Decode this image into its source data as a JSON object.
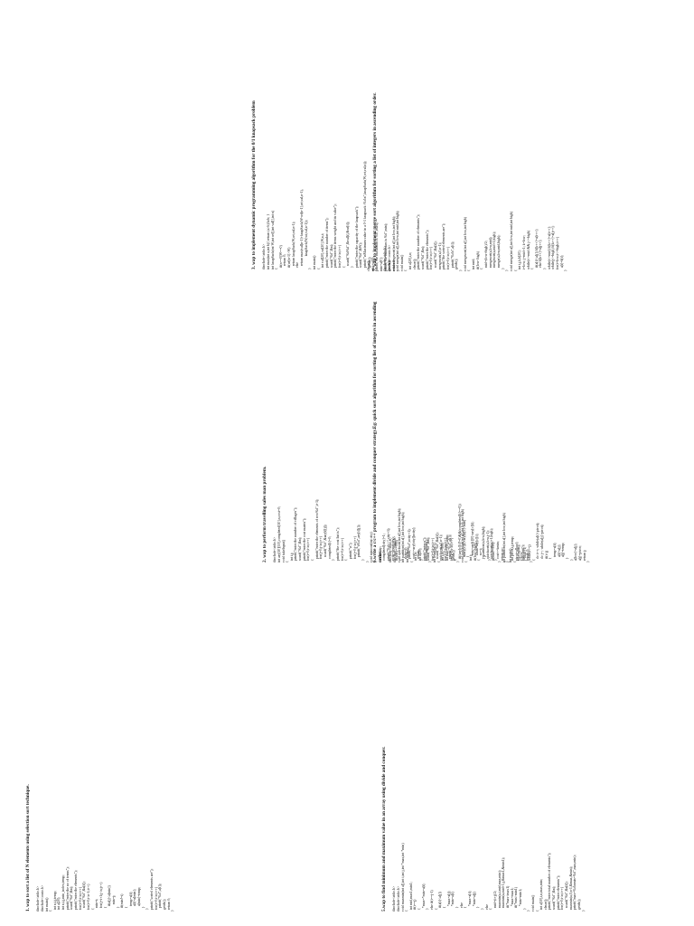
{
  "programs": [
    {
      "heading": "1. wap to sort a list of N elements using selection sort technique.",
      "code": "#include<stdio.h>\n#include<conio.h>\nint main()\n{\n  int n,i,j,temp;\n  int a[20];\n  int n,i,j,min_index,temp;\n  printf(\"enter the no of terms\");\n  scanf(\"%d\",&n);\n  printf(\"enter the elements\");\n  for(i=0;i<n;i++)\n    scanf(\"%d\",&a[i]);\n  for(i=0;i<n-1;i++)\n  {\n    min=i;\n    for(j=i+1;j<n;j++)\n    {\n      if(a[j]<a[min])\n        min=j;\n    }\n    if(min!=i)\n    {\n      temp=a[i];\n      a[i]=a[min];\n      a[min]=temp;\n    }\n  }\n  printf(\"sorted elements are\");\n  for(i=0;i<n;i++)\n    printf(\"%d\",a[i]);\n  getch();\n  return 0;\n}"
    },
    {
      "heading": "2. wap to perform travelling sales man problem.",
      "code": "#include<stdio.h>\nint ary[10][10],completed[10],n,cost=0;\nvoid takeInput()\n{\n  int i,j;\n  printf(\"enter the number of villages\");\n  scanf(\"%d\",&n);\n  printf(\"enter the cost matrix\");\n  for(i=0;i<n;i++)\n  {\n    printf(\"enter the elements of row%d\",i+1);\n    for(j=0;j<n;j++)\n      scanf(\"%d\",&ary[i][j]);\n    completed[i]=0;\n  }\n  printf(\"the cost list is\");\n  for(i=0;i<n;i++)\n  {\n    printf(\"\\n\");\n    for(j=0;j<n;j++)\n      printf(\"\\t%d\",ary[i][j]);\n  }\n}\nvoid mincost(int city)\n{\n  int i,ncity;\n  completed[city]=1;\n  printf(\"%d-->\",city+1);\n  ncity=least(city);\n  if(ncity==999)\n  {\n    ncity=0;\n    printf(\"%d\",ncity+1);\n    cost+=ary[city][ncity];\n    return;\n  }\n  mincost(ncity);\n}\nint least(int c)\n{\n  int i,nc=999;\n  int min=999,kmin;\n  for(i=0;i<n;i++)\n  {\n    if((ary[c][i]!=0)&&(completed[i]==0))\n      if(ary[c][i]+ary[i][c]<min)\n      {\n        min=ary[i][0]+ary[c][i];\n        kmin=ary[c][i];\n        nc=i;\n      }\n  }\n  if(min!=999)\n    cost+=kmin;\n  return nc;\n}\nint main()\n{\n  takeInput();\n  mincost(0);\n  return 0;\n}"
    },
    {
      "heading": "3. wap to implement dynamic programming algorithm for the 0/1 knapsack problem",
      "code": "#include<stdio.h>\nint max(int a,int b){ return (a>b)?a:b; }\nint knapSack(int W,int wt[],int val[],int n)\n{\n  if(n==0||W==0)\n    return 0;\n  if(wt[n-1]>W)\n    return knapSack(W,wt,val,n-1);\n  else\n    return max(val[n-1]+knapSack(W-wt[n-1],wt,val,n-1),\n               knapSack(W,wt,val,n-1));\n}\nint main()\n{\n  int val[20],wt[20],W,n,i;\n  printf(\"enter the number of items\");\n  scanf(\"%d\",&n);\n  printf(\"enter the items weight and its value\");\n  for(i=0;i<n;i++)\n  {\n    scanf(\"%d%d\",&val[i],&wt[i]);\n  }\n  printf(\"enter the capacity of the knapsack\");\n  scanf(\"%d\",&W);\n  printf(\"\\nMaximum value in a 0-1 knapsack :%d\\n\",knapSack(W,wt,val,n));\n  getch();\n}"
    },
    {
      "heading": "",
      "code": "clrscr();\nmax=a[0];\nprintf(\"the maximum is %d\",max);\nmin=a[0];\nprintf(\"the minimum is %d\",min);\ngetch();\nreturn 0;\n}"
    },
    {
      "heading": "5.wap to find minimum and maximum value in an array using divide and conquer.",
      "code": "#include<stdio.h>\n#include<stdio.h>\nvoid maxmin(int a[],int i,int j,int *max,int *min)\n{\n  int mid,max1,min1;\n  if(i==j)\n  {\n    *max=*min=a[i];\n  }\n  else if(i==j-1)\n  {\n    if(a[i]<a[j])\n    {\n      *max=a[j];\n      *min=a[i];\n    }\n    else\n    {\n      *max=a[i];\n      *min=a[j];\n    }\n  }\n  else\n  {\n    mid=(i+j)/2;\n    maxmin(a,i,mid,max,min);\n    maxmin(a,mid+1,j,&max1,&min1);\n    if(*max<max1)\n      *max=max1;\n    if(*min>min1)\n      *min=min1;\n  }\n}\nvoid main()\n{\n  int a[10],i,n,max,min;\n  clrscr();\n  printf(\"enter total number of elements\");\n  scanf(\"%d\",&n);\n  printf(\"enter elements\");\n  for(i=0;i<n;i++)\n    scanf(\"%d\",&a[i]);\n  maxmin(a,0,n-1,&max,&min);\n  printf(\"max=%d\\nmin=%d\",max,min);\n  getch();\n}"
    },
    {
      "heading": "6.write a c/c++ program to implement divide and conquer strategy.Eg: quick sort algorithm for sorting list of integers in ascending order.",
      "code": "#include<stdio.h>\n#include<conio.h>\nvoid quicksort(int a[],int low,int high);\nint partition(int a[],int low,int high);\nint main()\n{\n  int i,n;\n  int a[20];\n  printf(\"enter n\");\n  scanf(\"%d\",&n);\n  for(i=0;i<n;i++)\n    scanf(\"%d\",&a[i]);\n  quicksort(a,0,n-1);\n  for(i=0;i<n;i++)\n    printf(\"%d\",a[i]);\n  getch();\n}\nvoid quicksort(int a[],int low,int high)\n{\n  int j;\n  if(low<high)\n  {\n    j=partition(a,low,high);\n    quicksort(a,low,j-1);\n    quicksort(a,j+1,high);\n  }\n}\nint partition(int a[],int low,int high)\n{\n  int pivot,i,j,temp;\n  pivot=a[low];\n  i=low;\n  j=high+1;\n  while(i<=j)\n  {\n    do i++; while(a[i]<pivot);\n    do j--; while(a[j]>pivot);\n    if(i<j)\n    {\n      temp=a[i];\n      a[i]=a[j];\n      a[j]=temp;\n    }\n  }\n  a[low]=a[j];\n  a[j]=pivot;\n  return j;\n}"
    },
    {
      "heading": "7. wap to implement merge sort algorithm for sorting a list of integers in ascending order.",
      "code": "#include<stdio.h>\n#include<conio.h>\nvoid mergesort(int a[],int low,int high);\nvoid merge(int a[],int low,int mid,int high);\nvoid main()\n{\n  int a[20],i,n;\n  clrscr();\n  printf(\"enter the number of elements\");\n  scanf(\"%d\",&n);\n  printf(\"enter the elements\");\n  for(i=0;i<n;i++)\n    scanf(\"%d\",&a[i]);\n  mergesort(a,0,n-1);\n  printf(\"the sorted elements are\");\n  for(i=0;i<n;i++)\n    printf(\"%d\\t\",a[i]);\n  getch();\n}\nvoid mergesort(int a[],int low,int high)\n{\n  int mid;\n  if(low<high)\n  {\n    mid=(low+high)/2;\n    mergesort(a,low,mid);\n    mergesort(a,mid+1,high);\n    merge(a,low,mid,high);\n  }\n}\nvoid merge(int a[],int low,int mid,int high)\n{\n  int i,j,k,b[20];\n  i=low; j=mid+1; k=low;\n  while(i<=mid && j<=high)\n  {\n    if(a[i]<a[j]) b[k++]=a[i++];\n    else b[k++]=a[j++];\n  }\n  while(i<=mid) b[k++]=a[i++];\n  while(j<=high) b[k++]=a[j++];\n  for(i=low;i<=high;i++)\n    a[i]=b[i];\n}"
    }
  ]
}
